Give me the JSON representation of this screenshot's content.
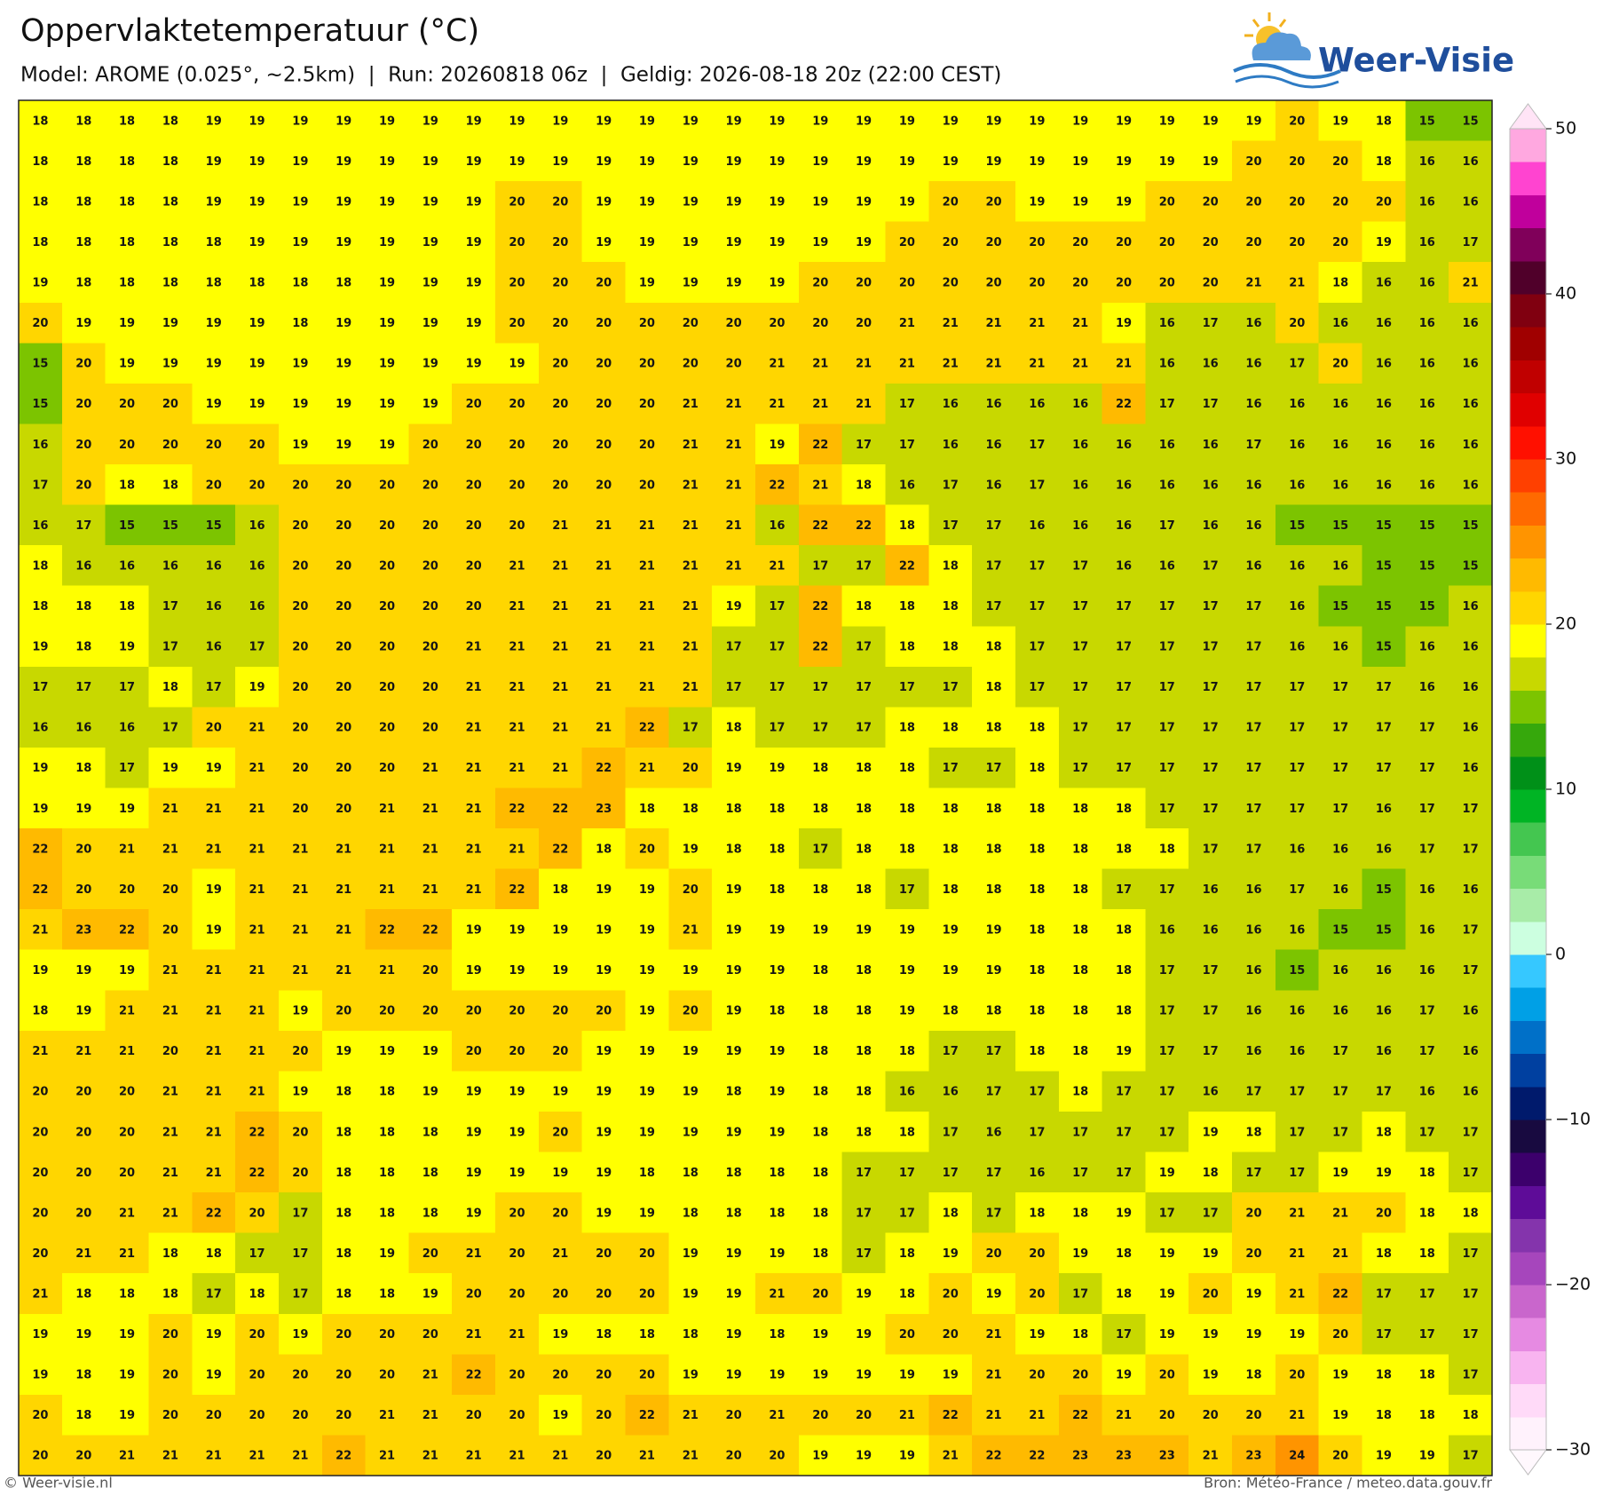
{
  "map": {
    "title": "Oppervlaktetemperatuur (°C)",
    "subtitle": "Model: AROME (0.025°, ~2.5km)  |  Run: 20260818 06z  |  Geldig: 2026-08-18 20z (22:00 CEST)",
    "logo": "Weer-Visie",
    "grid": [
      [
        18,
        18,
        18,
        18,
        19,
        19,
        19,
        19,
        19,
        19,
        19,
        19,
        19,
        19,
        19,
        19,
        19,
        19,
        19,
        19,
        19,
        19,
        19,
        19,
        19,
        19,
        19,
        19,
        19,
        20,
        19,
        18,
        15,
        15
      ],
      [
        18,
        18,
        18,
        18,
        19,
        19,
        19,
        19,
        19,
        19,
        19,
        19,
        19,
        19,
        19,
        19,
        19,
        19,
        19,
        19,
        19,
        19,
        19,
        19,
        19,
        19,
        19,
        19,
        20,
        20,
        20,
        18,
        16,
        16
      ],
      [
        18,
        18,
        18,
        18,
        19,
        19,
        19,
        19,
        19,
        19,
        19,
        20,
        20,
        19,
        19,
        19,
        19,
        19,
        19,
        19,
        19,
        20,
        20,
        19,
        19,
        19,
        20,
        20,
        20,
        20,
        20,
        20,
        16,
        16
      ],
      [
        18,
        18,
        18,
        18,
        18,
        19,
        19,
        19,
        19,
        19,
        19,
        20,
        20,
        19,
        19,
        19,
        19,
        19,
        19,
        19,
        20,
        20,
        20,
        20,
        20,
        20,
        20,
        20,
        20,
        20,
        20,
        19,
        16,
        17
      ],
      [
        19,
        18,
        18,
        18,
        18,
        18,
        18,
        18,
        19,
        19,
        19,
        20,
        20,
        20,
        19,
        19,
        19,
        19,
        20,
        20,
        20,
        20,
        20,
        20,
        20,
        20,
        20,
        20,
        21,
        21,
        18,
        16,
        16,
        21
      ],
      [
        20,
        19,
        19,
        19,
        19,
        19,
        18,
        19,
        19,
        19,
        19,
        20,
        20,
        20,
        20,
        20,
        20,
        20,
        20,
        20,
        21,
        21,
        21,
        21,
        21,
        19,
        16,
        17,
        16,
        20,
        16,
        16,
        16,
        16
      ],
      [
        15,
        20,
        19,
        19,
        19,
        19,
        19,
        19,
        19,
        19,
        19,
        19,
        20,
        20,
        20,
        20,
        20,
        21,
        21,
        21,
        21,
        21,
        21,
        21,
        21,
        21,
        16,
        16,
        16,
        17,
        20,
        16,
        16,
        16
      ],
      [
        15,
        20,
        20,
        20,
        19,
        19,
        19,
        19,
        19,
        19,
        20,
        20,
        20,
        20,
        20,
        21,
        21,
        21,
        21,
        21,
        17,
        16,
        16,
        16,
        16,
        22,
        17,
        17,
        16,
        16,
        16,
        16,
        16,
        16
      ],
      [
        16,
        20,
        20,
        20,
        20,
        20,
        19,
        19,
        19,
        20,
        20,
        20,
        20,
        20,
        20,
        21,
        21,
        19,
        22,
        17,
        17,
        16,
        16,
        17,
        16,
        16,
        16,
        16,
        17,
        16,
        16,
        16,
        16,
        16
      ],
      [
        17,
        20,
        18,
        18,
        20,
        20,
        20,
        20,
        20,
        20,
        20,
        20,
        20,
        20,
        20,
        21,
        21,
        22,
        21,
        18,
        16,
        17,
        16,
        17,
        16,
        16,
        16,
        16,
        16,
        16,
        16,
        16,
        16,
        16
      ],
      [
        16,
        17,
        15,
        15,
        15,
        16,
        20,
        20,
        20,
        20,
        20,
        20,
        21,
        21,
        21,
        21,
        21,
        16,
        22,
        22,
        18,
        17,
        17,
        16,
        16,
        16,
        17,
        16,
        16,
        15,
        15,
        15,
        15,
        15
      ],
      [
        18,
        16,
        16,
        16,
        16,
        16,
        20,
        20,
        20,
        20,
        20,
        21,
        21,
        21,
        21,
        21,
        21,
        21,
        17,
        17,
        22,
        18,
        17,
        17,
        17,
        16,
        16,
        17,
        16,
        16,
        16,
        15,
        15,
        15
      ],
      [
        18,
        18,
        18,
        17,
        16,
        16,
        20,
        20,
        20,
        20,
        20,
        21,
        21,
        21,
        21,
        21,
        19,
        17,
        22,
        18,
        18,
        18,
        17,
        17,
        17,
        17,
        17,
        17,
        17,
        16,
        15,
        15,
        15,
        16
      ],
      [
        19,
        18,
        19,
        17,
        16,
        17,
        20,
        20,
        20,
        20,
        21,
        21,
        21,
        21,
        21,
        21,
        17,
        17,
        22,
        17,
        18,
        18,
        18,
        17,
        17,
        17,
        17,
        17,
        17,
        16,
        16,
        15,
        16,
        16
      ],
      [
        17,
        17,
        17,
        18,
        17,
        19,
        20,
        20,
        20,
        20,
        21,
        21,
        21,
        21,
        21,
        21,
        17,
        17,
        17,
        17,
        17,
        17,
        18,
        17,
        17,
        17,
        17,
        17,
        17,
        17,
        17,
        17,
        16,
        16
      ],
      [
        16,
        16,
        16,
        17,
        20,
        21,
        20,
        20,
        20,
        20,
        21,
        21,
        21,
        21,
        22,
        17,
        18,
        17,
        17,
        17,
        18,
        18,
        18,
        18,
        17,
        17,
        17,
        17,
        17,
        17,
        17,
        17,
        17,
        16
      ],
      [
        19,
        18,
        17,
        19,
        19,
        21,
        20,
        20,
        20,
        21,
        21,
        21,
        21,
        22,
        21,
        20,
        19,
        19,
        18,
        18,
        18,
        17,
        17,
        18,
        17,
        17,
        17,
        17,
        17,
        17,
        17,
        17,
        17,
        16
      ],
      [
        19,
        19,
        19,
        21,
        21,
        21,
        20,
        20,
        21,
        21,
        21,
        22,
        22,
        23,
        18,
        18,
        18,
        18,
        18,
        18,
        18,
        18,
        18,
        18,
        18,
        18,
        17,
        17,
        17,
        17,
        17,
        16,
        17,
        17
      ],
      [
        22,
        20,
        21,
        21,
        21,
        21,
        21,
        21,
        21,
        21,
        21,
        21,
        22,
        18,
        20,
        19,
        18,
        18,
        17,
        18,
        18,
        18,
        18,
        18,
        18,
        18,
        18,
        17,
        17,
        16,
        16,
        16,
        17,
        17
      ],
      [
        22,
        20,
        20,
        20,
        19,
        21,
        21,
        21,
        21,
        21,
        21,
        22,
        18,
        19,
        19,
        20,
        19,
        18,
        18,
        18,
        17,
        18,
        18,
        18,
        18,
        17,
        17,
        16,
        16,
        17,
        16,
        15,
        16,
        16
      ],
      [
        21,
        23,
        22,
        20,
        19,
        21,
        21,
        21,
        22,
        22,
        19,
        19,
        19,
        19,
        19,
        21,
        19,
        19,
        19,
        19,
        19,
        19,
        19,
        18,
        18,
        18,
        16,
        16,
        16,
        16,
        15,
        15,
        16,
        17
      ],
      [
        19,
        19,
        19,
        21,
        21,
        21,
        21,
        21,
        21,
        20,
        19,
        19,
        19,
        19,
        19,
        19,
        19,
        19,
        18,
        18,
        19,
        19,
        19,
        18,
        18,
        18,
        17,
        17,
        16,
        15,
        16,
        16,
        16,
        17
      ],
      [
        18,
        19,
        21,
        21,
        21,
        21,
        19,
        20,
        20,
        20,
        20,
        20,
        20,
        20,
        19,
        20,
        19,
        18,
        18,
        18,
        19,
        18,
        18,
        18,
        18,
        18,
        17,
        17,
        16,
        16,
        16,
        16,
        17,
        16
      ],
      [
        21,
        21,
        21,
        20,
        21,
        21,
        20,
        19,
        19,
        19,
        20,
        20,
        20,
        19,
        19,
        19,
        19,
        19,
        18,
        18,
        18,
        17,
        17,
        18,
        18,
        19,
        17,
        17,
        16,
        16,
        17,
        16,
        17,
        16
      ],
      [
        20,
        20,
        20,
        21,
        21,
        21,
        19,
        18,
        18,
        19,
        19,
        19,
        19,
        19,
        19,
        19,
        18,
        19,
        18,
        18,
        16,
        16,
        17,
        17,
        18,
        17,
        17,
        16,
        17,
        17,
        17,
        17,
        16,
        16
      ],
      [
        20,
        20,
        20,
        21,
        21,
        22,
        20,
        18,
        18,
        18,
        19,
        19,
        20,
        19,
        19,
        19,
        19,
        19,
        18,
        18,
        18,
        17,
        16,
        17,
        17,
        17,
        17,
        19,
        18,
        17,
        17,
        18,
        17,
        17
      ],
      [
        20,
        20,
        20,
        21,
        21,
        22,
        20,
        18,
        18,
        18,
        19,
        19,
        19,
        19,
        18,
        18,
        18,
        18,
        18,
        17,
        17,
        17,
        17,
        16,
        17,
        17,
        19,
        18,
        17,
        17,
        19,
        19,
        18,
        17
      ],
      [
        20,
        20,
        21,
        21,
        22,
        20,
        17,
        18,
        18,
        18,
        19,
        20,
        20,
        19,
        19,
        18,
        18,
        18,
        18,
        17,
        17,
        18,
        17,
        18,
        18,
        19,
        17,
        17,
        20,
        21,
        21,
        20,
        18,
        18
      ],
      [
        20,
        21,
        21,
        18,
        18,
        17,
        17,
        18,
        19,
        20,
        21,
        20,
        21,
        20,
        20,
        19,
        19,
        19,
        18,
        17,
        18,
        19,
        20,
        20,
        19,
        18,
        19,
        19,
        20,
        21,
        21,
        18,
        18,
        17
      ],
      [
        21,
        18,
        18,
        18,
        17,
        18,
        17,
        18,
        18,
        19,
        20,
        20,
        20,
        20,
        20,
        19,
        19,
        21,
        20,
        19,
        18,
        20,
        19,
        20,
        17,
        18,
        19,
        20,
        19,
        21,
        22,
        17,
        17,
        17
      ],
      [
        19,
        19,
        19,
        20,
        19,
        20,
        19,
        20,
        20,
        20,
        21,
        21,
        19,
        18,
        18,
        18,
        19,
        18,
        19,
        19,
        20,
        20,
        21,
        19,
        18,
        17,
        19,
        19,
        19,
        19,
        20,
        17,
        17,
        17
      ],
      [
        19,
        18,
        19,
        20,
        19,
        20,
        20,
        20,
        20,
        21,
        22,
        20,
        20,
        20,
        20,
        19,
        19,
        19,
        19,
        19,
        19,
        19,
        21,
        20,
        20,
        19,
        20,
        19,
        18,
        20,
        19,
        18,
        18,
        17
      ],
      [
        20,
        18,
        19,
        20,
        20,
        20,
        20,
        20,
        21,
        21,
        20,
        20,
        19,
        20,
        22,
        21,
        20,
        21,
        20,
        20,
        21,
        22,
        21,
        21,
        22,
        21,
        20,
        20,
        20,
        21,
        19,
        18,
        18,
        18
      ],
      [
        20,
        20,
        21,
        21,
        21,
        21,
        21,
        22,
        21,
        21,
        21,
        21,
        21,
        20,
        21,
        21,
        20,
        20,
        19,
        19,
        19,
        21,
        22,
        22,
        23,
        23,
        23,
        21,
        23,
        24,
        20,
        19,
        19,
        17
      ]
    ]
  },
  "colorbar": {
    "lim": [
      -30,
      50
    ],
    "ticks": [
      {
        "value": -30,
        "label": "−30"
      },
      {
        "value": -20,
        "label": "−20"
      },
      {
        "value": -10,
        "label": "−10"
      },
      0,
      10,
      20,
      30,
      40,
      50
    ],
    "colors": [
      "#fff2fc",
      "#ffdaf8",
      "#f8b4f0",
      "#e68ae2",
      "#c966cc",
      "#a646bc",
      "#8434ac",
      "#5e0c98",
      "#3c006c",
      "#180a40",
      "#001a6c",
      "#0040a0",
      "#0070c8",
      "#00a0e6",
      "#36c8ff",
      "#ccffe0",
      "#a8eca8",
      "#78dc78",
      "#44c650",
      "#00b424",
      "#009018",
      "#36a80c",
      "#7cc400",
      "#c8d800",
      "#ffff00",
      "#ffd600",
      "#ffba00",
      "#ff9400",
      "#ff6a00",
      "#ff4000",
      "#ff1000",
      "#e00000",
      "#c00000",
      "#a00000",
      "#800010",
      "#50002a",
      "#80005a",
      "#c0009c",
      "#ff44d0",
      "#ffa8e0"
    ],
    "under": "#fff8fd",
    "over": "#ffe4f6"
  },
  "footer": {
    "left": "© Weer-visie.nl",
    "right": "Bron: Météo-France / meteo.data.gouv.fr"
  }
}
